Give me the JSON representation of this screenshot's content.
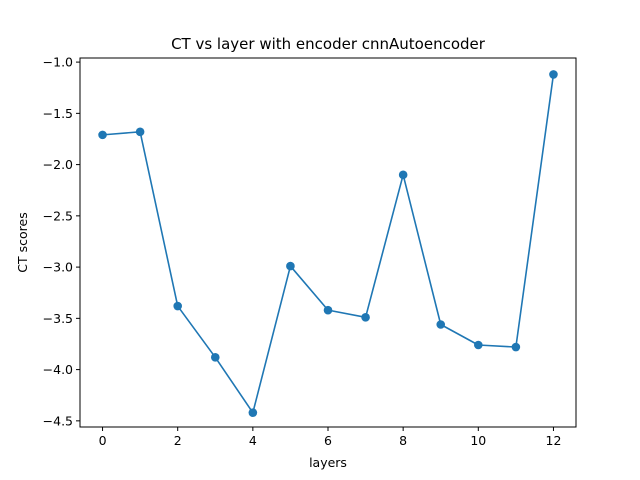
{
  "chart_data": {
    "type": "line",
    "title": "CT vs layer with encoder cnnAutoencoder",
    "xlabel": "layers",
    "ylabel": "CT scores",
    "xlim": [
      -0.6,
      12.6
    ],
    "ylim": [
      -4.56,
      -0.96
    ],
    "x_ticks": [
      0,
      2,
      4,
      6,
      8,
      10,
      12
    ],
    "y_ticks": [
      -1.0,
      -1.5,
      -2.0,
      -2.5,
      -3.0,
      -3.5,
      -4.0,
      -4.5
    ],
    "x_tick_labels": [
      "0",
      "2",
      "4",
      "6",
      "8",
      "10",
      "12"
    ],
    "y_tick_labels": [
      "−1.0",
      "−1.5",
      "−2.0",
      "−2.5",
      "−3.0",
      "−3.5",
      "−4.0",
      "−4.5"
    ],
    "grid": false,
    "legend": "none",
    "color": "#1f77b4",
    "marker": "circle",
    "series": [
      {
        "x": [
          0,
          1,
          2,
          3,
          4,
          5,
          6,
          7,
          8,
          9,
          10,
          11,
          12
        ],
        "values": [
          -1.71,
          -1.68,
          -3.38,
          -3.88,
          -4.42,
          -2.99,
          -3.42,
          -3.49,
          -2.1,
          -3.56,
          -3.76,
          -3.78,
          -1.12
        ]
      }
    ]
  }
}
